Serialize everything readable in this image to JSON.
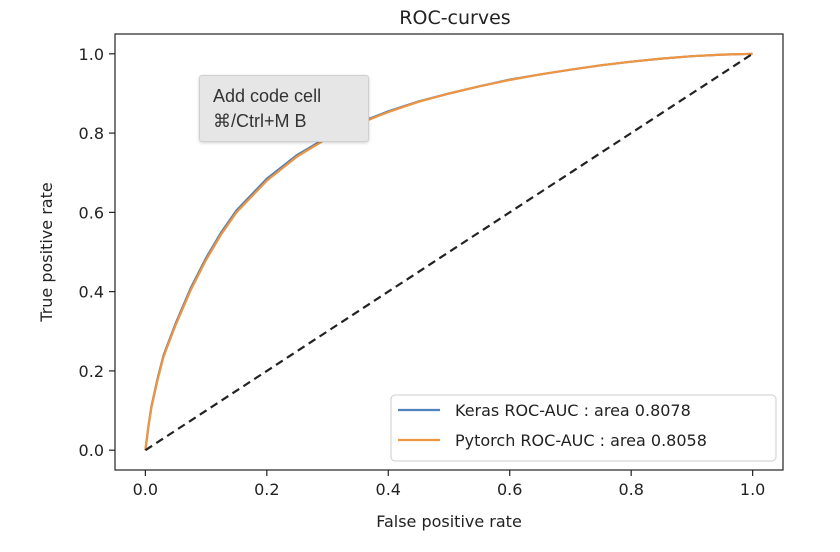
{
  "tooltip": {
    "line1": "Add code cell",
    "line2": "⌘/Ctrl+M B"
  },
  "chart_data": {
    "type": "line",
    "title": "ROC-curves",
    "xlabel": "False positive rate",
    "ylabel": "True positive rate",
    "xlim": [
      -0.05,
      1.05
    ],
    "ylim": [
      -0.05,
      1.05
    ],
    "xticks": [
      "0.0",
      "0.2",
      "0.4",
      "0.6",
      "0.8",
      "1.0"
    ],
    "yticks": [
      "0.0",
      "0.2",
      "0.4",
      "0.6",
      "0.8",
      "1.0"
    ],
    "grid": false,
    "legend_position": "lower-right",
    "series": [
      {
        "name": "Keras ROC-AUC : area 0.8078",
        "color": "#4f81bd",
        "x": [
          0,
          0.005,
          0.01,
          0.02,
          0.03,
          0.05,
          0.075,
          0.1,
          0.125,
          0.15,
          0.2,
          0.25,
          0.3,
          0.35,
          0.4,
          0.45,
          0.5,
          0.55,
          0.6,
          0.65,
          0.7,
          0.75,
          0.8,
          0.85,
          0.9,
          0.95,
          1.0
        ],
        "y": [
          0,
          0.06,
          0.11,
          0.18,
          0.24,
          0.32,
          0.41,
          0.485,
          0.55,
          0.605,
          0.685,
          0.745,
          0.79,
          0.825,
          0.855,
          0.88,
          0.9,
          0.918,
          0.935,
          0.948,
          0.96,
          0.971,
          0.98,
          0.988,
          0.994,
          0.998,
          1.0
        ]
      },
      {
        "name": "Pytorch ROC-AUC : area 0.8058",
        "color": "#f0953f",
        "x": [
          0,
          0.005,
          0.01,
          0.02,
          0.03,
          0.05,
          0.075,
          0.1,
          0.125,
          0.15,
          0.2,
          0.25,
          0.3,
          0.35,
          0.4,
          0.45,
          0.5,
          0.55,
          0.6,
          0.65,
          0.7,
          0.75,
          0.8,
          0.85,
          0.9,
          0.95,
          1.0
        ],
        "y": [
          0,
          0.058,
          0.107,
          0.176,
          0.236,
          0.316,
          0.405,
          0.48,
          0.545,
          0.6,
          0.68,
          0.741,
          0.787,
          0.823,
          0.853,
          0.879,
          0.9,
          0.918,
          0.934,
          0.948,
          0.96,
          0.971,
          0.98,
          0.988,
          0.994,
          0.998,
          1.0
        ]
      }
    ],
    "reference_line": {
      "x": [
        0,
        1
      ],
      "y": [
        0,
        1
      ],
      "color": "#222222",
      "style": "dashed"
    }
  }
}
